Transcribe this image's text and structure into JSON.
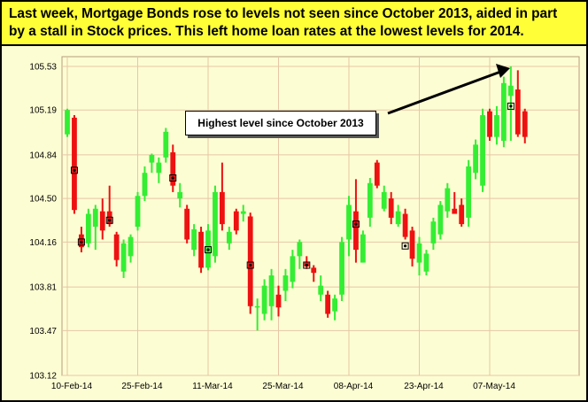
{
  "headline": {
    "line1": "Last week, Mortgage Bonds rose to levels not seen since October 2013, aided in part",
    "line2": "by a stall in Stock prices.  This left home loan rates at the lowest levels for 2014."
  },
  "annotation": {
    "text": "Highest level since October 2013"
  },
  "colors": {
    "up": "#33ee33",
    "down": "#ee1111",
    "grid": "#e6c6a6",
    "headline_bg": "#fffe37",
    "plot_bg": "#fdfdd3",
    "arrow": "#000000"
  },
  "chart_data": {
    "type": "candlestick",
    "title": "",
    "xlabel": "",
    "ylabel": "",
    "grid": true,
    "ylim": [
      103.12,
      105.68
    ],
    "y_ticks": [
      "105.53",
      "105.19",
      "104.84",
      "104.50",
      "104.16",
      "103.81",
      "103.47",
      "103.12"
    ],
    "x_ticks": [
      {
        "index": 0,
        "label": "10-Feb-14"
      },
      {
        "index": 10,
        "label": "25-Feb-14"
      },
      {
        "index": 20,
        "label": "11-Mar-14"
      },
      {
        "index": 30,
        "label": "25-Mar-14"
      },
      {
        "index": 40,
        "label": "08-Apr-14"
      },
      {
        "index": 50,
        "label": "23-Apr-14"
      },
      {
        "index": 60,
        "label": "07-May-14"
      }
    ],
    "candles": [
      {
        "o": 105.0,
        "h": 105.2,
        "l": 104.98,
        "c": 105.19
      },
      {
        "o": 105.13,
        "h": 105.15,
        "l": 104.38,
        "c": 104.41
      },
      {
        "o": 104.22,
        "h": 104.28,
        "l": 104.08,
        "c": 104.12
      },
      {
        "o": 104.15,
        "h": 104.42,
        "l": 104.12,
        "c": 104.38
      },
      {
        "o": 104.28,
        "h": 104.45,
        "l": 104.1,
        "c": 104.42
      },
      {
        "o": 104.4,
        "h": 104.5,
        "l": 104.18,
        "c": 104.25
      },
      {
        "o": 104.4,
        "h": 104.6,
        "l": 104.28,
        "c": 104.3
      },
      {
        "o": 104.22,
        "h": 104.24,
        "l": 103.97,
        "c": 104.02
      },
      {
        "o": 103.93,
        "h": 104.18,
        "l": 103.88,
        "c": 104.15
      },
      {
        "o": 104.05,
        "h": 104.22,
        "l": 104.0,
        "c": 104.2
      },
      {
        "o": 104.28,
        "h": 104.55,
        "l": 104.25,
        "c": 104.52
      },
      {
        "o": 104.52,
        "h": 104.75,
        "l": 104.48,
        "c": 104.7
      },
      {
        "o": 104.78,
        "h": 104.85,
        "l": 104.7,
        "c": 104.84
      },
      {
        "o": 104.7,
        "h": 104.82,
        "l": 104.62,
        "c": 104.78
      },
      {
        "o": 104.82,
        "h": 105.05,
        "l": 104.78,
        "c": 105.02
      },
      {
        "o": 104.86,
        "h": 104.92,
        "l": 104.55,
        "c": 104.6
      },
      {
        "o": 104.5,
        "h": 104.62,
        "l": 104.43,
        "c": 104.55
      },
      {
        "o": 104.42,
        "h": 104.45,
        "l": 104.15,
        "c": 104.18
      },
      {
        "o": 104.1,
        "h": 104.3,
        "l": 104.05,
        "c": 104.26
      },
      {
        "o": 104.24,
        "h": 104.28,
        "l": 103.92,
        "c": 103.96
      },
      {
        "o": 103.96,
        "h": 104.3,
        "l": 103.94,
        "c": 104.25
      },
      {
        "o": 104.05,
        "h": 104.6,
        "l": 104.0,
        "c": 104.55
      },
      {
        "o": 104.55,
        "h": 104.78,
        "l": 104.25,
        "c": 104.3
      },
      {
        "o": 104.15,
        "h": 104.28,
        "l": 104.1,
        "c": 104.24
      },
      {
        "o": 104.4,
        "h": 104.42,
        "l": 104.22,
        "c": 104.25
      },
      {
        "o": 104.38,
        "h": 104.45,
        "l": 104.32,
        "c": 104.4
      },
      {
        "o": 104.36,
        "h": 104.39,
        "l": 103.6,
        "c": 103.66
      },
      {
        "o": 103.66,
        "h": 103.72,
        "l": 103.47,
        "c": 103.66
      },
      {
        "o": 103.6,
        "h": 103.87,
        "l": 103.55,
        "c": 103.82
      },
      {
        "o": 103.66,
        "h": 103.95,
        "l": 103.55,
        "c": 103.9
      },
      {
        "o": 103.75,
        "h": 103.82,
        "l": 103.58,
        "c": 103.65
      },
      {
        "o": 103.78,
        "h": 103.95,
        "l": 103.7,
        "c": 103.9
      },
      {
        "o": 103.85,
        "h": 104.1,
        "l": 103.8,
        "c": 104.05
      },
      {
        "o": 104.05,
        "h": 104.18,
        "l": 103.95,
        "c": 104.16
      },
      {
        "o": 104.0,
        "h": 104.05,
        "l": 103.95,
        "c": 103.97
      },
      {
        "o": 103.96,
        "h": 103.98,
        "l": 103.85,
        "c": 103.92
      },
      {
        "o": 103.75,
        "h": 103.9,
        "l": 103.7,
        "c": 103.82
      },
      {
        "o": 103.75,
        "h": 103.78,
        "l": 103.57,
        "c": 103.6
      },
      {
        "o": 103.62,
        "h": 103.75,
        "l": 103.55,
        "c": 103.72
      },
      {
        "o": 103.75,
        "h": 104.2,
        "l": 103.7,
        "c": 104.16
      },
      {
        "o": 104.18,
        "h": 104.52,
        "l": 104.05,
        "c": 104.45
      },
      {
        "o": 104.4,
        "h": 104.65,
        "l": 104.0,
        "c": 104.1
      },
      {
        "o": 104.0,
        "h": 104.25,
        "l": 104.0,
        "c": 104.22
      },
      {
        "o": 104.35,
        "h": 104.66,
        "l": 104.28,
        "c": 104.62
      },
      {
        "o": 104.78,
        "h": 104.8,
        "l": 104.58,
        "c": 104.6
      },
      {
        "o": 104.42,
        "h": 104.6,
        "l": 104.4,
        "c": 104.55
      },
      {
        "o": 104.5,
        "h": 104.55,
        "l": 104.3,
        "c": 104.35
      },
      {
        "o": 104.3,
        "h": 104.45,
        "l": 104.28,
        "c": 104.4
      },
      {
        "o": 104.38,
        "h": 104.42,
        "l": 104.18,
        "c": 104.2
      },
      {
        "o": 104.25,
        "h": 104.28,
        "l": 103.97,
        "c": 104.03
      },
      {
        "o": 104.0,
        "h": 104.2,
        "l": 103.9,
        "c": 104.15
      },
      {
        "o": 103.93,
        "h": 104.1,
        "l": 103.9,
        "c": 104.07
      },
      {
        "o": 104.15,
        "h": 104.35,
        "l": 104.1,
        "c": 104.32
      },
      {
        "o": 104.22,
        "h": 104.48,
        "l": 104.18,
        "c": 104.45
      },
      {
        "o": 104.4,
        "h": 104.62,
        "l": 104.35,
        "c": 104.58
      },
      {
        "o": 104.42,
        "h": 104.55,
        "l": 104.4,
        "c": 104.38
      },
      {
        "o": 104.45,
        "h": 104.5,
        "l": 104.28,
        "c": 104.3
      },
      {
        "o": 104.35,
        "h": 104.8,
        "l": 104.28,
        "c": 104.75
      },
      {
        "o": 104.7,
        "h": 104.96,
        "l": 104.65,
        "c": 104.92
      },
      {
        "o": 104.6,
        "h": 105.2,
        "l": 104.55,
        "c": 105.15
      },
      {
        "o": 105.18,
        "h": 105.2,
        "l": 104.95,
        "c": 104.98
      },
      {
        "o": 104.98,
        "h": 105.22,
        "l": 104.92,
        "c": 105.15
      },
      {
        "o": 104.95,
        "h": 105.45,
        "l": 104.9,
        "c": 105.4
      },
      {
        "o": 105.3,
        "h": 105.53,
        "l": 104.95,
        "c": 105.38
      },
      {
        "o": 105.35,
        "h": 105.5,
        "l": 104.98,
        "c": 105.0
      },
      {
        "o": 105.18,
        "h": 105.2,
        "l": 104.93,
        "c": 104.98
      }
    ],
    "markers": [
      {
        "index": 1,
        "value": 104.72
      },
      {
        "index": 2,
        "value": 104.16
      },
      {
        "index": 6,
        "value": 104.33
      },
      {
        "index": 15,
        "value": 104.66
      },
      {
        "index": 20,
        "value": 104.1
      },
      {
        "index": 26,
        "value": 103.98
      },
      {
        "index": 34,
        "value": 103.98
      },
      {
        "index": 41,
        "value": 104.3
      },
      {
        "index": 48,
        "value": 104.13
      },
      {
        "index": 63,
        "value": 105.22
      }
    ]
  }
}
